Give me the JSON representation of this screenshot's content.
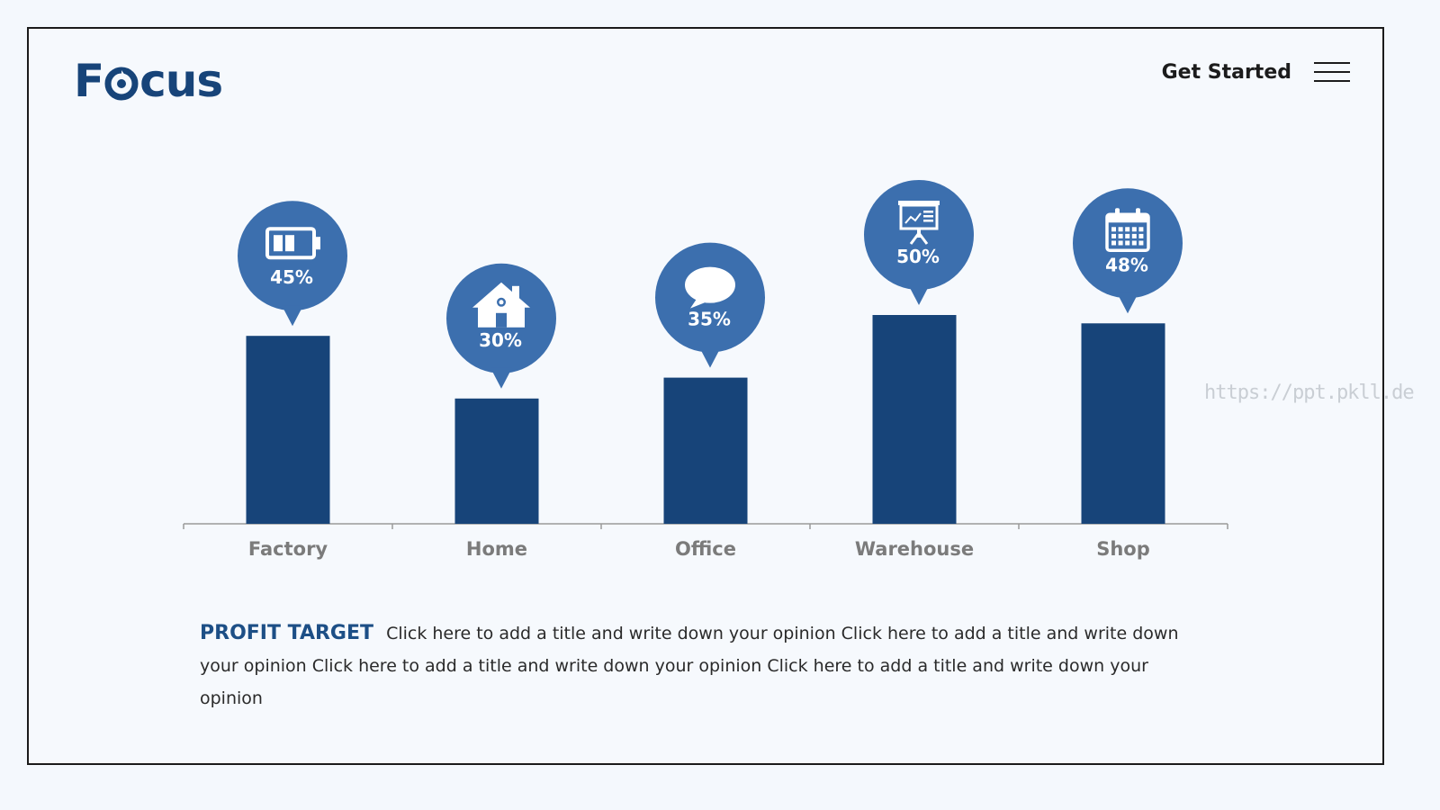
{
  "header": {
    "logo_text_left": "F",
    "logo_text_right": "cus",
    "get_started_label": "Get Started",
    "menu_icon": "hamburger-menu-icon"
  },
  "colors": {
    "bar": "#174479",
    "bubble": "#3c6fae",
    "axis": "#9a9a9a",
    "accent": "#1d4f86"
  },
  "chart_data": {
    "type": "bar",
    "categories": [
      "Factory",
      "Home",
      "Office",
      "Warehouse",
      "Shop"
    ],
    "values": [
      45,
      30,
      35,
      50,
      48
    ],
    "value_labels": [
      "45%",
      "30%",
      "35%",
      "50%",
      "48%"
    ],
    "icons": [
      "battery-icon",
      "house-icon",
      "speech-bubble-icon",
      "presentation-board-icon",
      "calendar-icon"
    ],
    "ylim": [
      0,
      100
    ],
    "grid": false,
    "legend": "none"
  },
  "description": {
    "heading": "PROFIT TARGET",
    "body": "Click here to add a title  and write down your opinion Click here to add a title and write down your opinion Click here to add a title  and write down your opinion Click here to add a title and write down your opinion"
  },
  "watermark": "https://ppt.pkll.de"
}
